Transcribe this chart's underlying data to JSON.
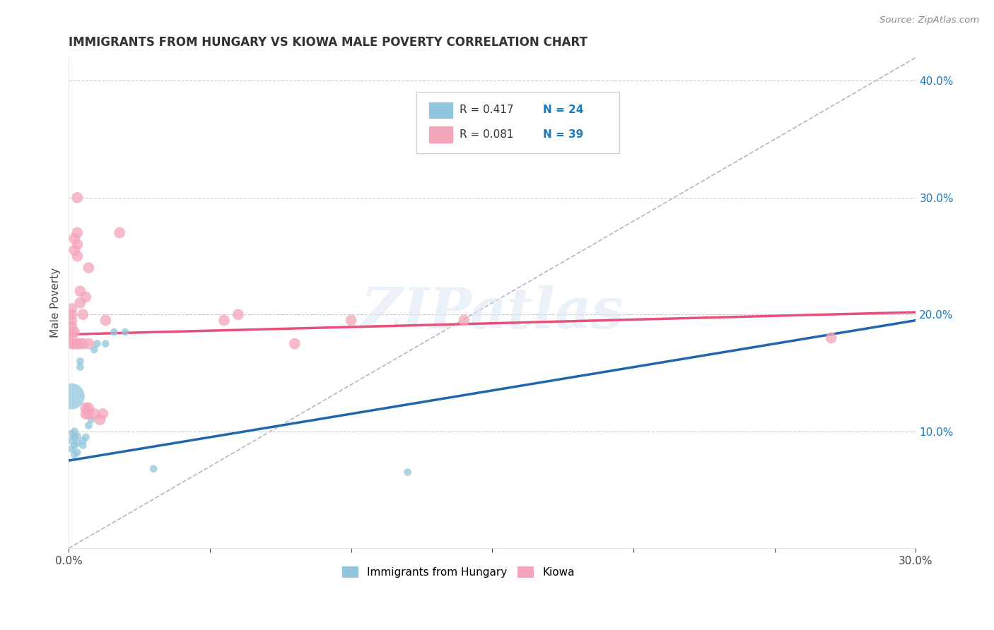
{
  "title": "IMMIGRANTS FROM HUNGARY VS KIOWA MALE POVERTY CORRELATION CHART",
  "source": "Source: ZipAtlas.com",
  "ylabel": "Male Poverty",
  "xlim": [
    0.0,
    0.3
  ],
  "ylim": [
    0.0,
    0.42
  ],
  "x_tick_positions": [
    0.0,
    0.05,
    0.1,
    0.15,
    0.2,
    0.25,
    0.3
  ],
  "x_tick_labels": [
    "0.0%",
    "",
    "",
    "",
    "",
    "",
    "30.0%"
  ],
  "y_ticks_right": [
    0.1,
    0.2,
    0.3,
    0.4
  ],
  "y_tick_labels_right": [
    "10.0%",
    "20.0%",
    "30.0%",
    "40.0%"
  ],
  "grid_color": "#cccccc",
  "background_color": "#ffffff",
  "watermark": "ZIPatlas",
  "legend_r1": "R = 0.417",
  "legend_n1": "N = 24",
  "legend_r2": "R = 0.081",
  "legend_n2": "N = 39",
  "blue_color": "#92c5de",
  "pink_color": "#f4a5b8",
  "blue_line_color": "#2166ac",
  "pink_line_color": "#e8507a",
  "dashed_line_color": "#b0b8c8",
  "blue_dots": [
    [
      0.001,
      0.085
    ],
    [
      0.001,
      0.092
    ],
    [
      0.001,
      0.098
    ],
    [
      0.002,
      0.08
    ],
    [
      0.002,
      0.088
    ],
    [
      0.002,
      0.095
    ],
    [
      0.002,
      0.1
    ],
    [
      0.003,
      0.082
    ],
    [
      0.003,
      0.09
    ],
    [
      0.003,
      0.096
    ],
    [
      0.004,
      0.155
    ],
    [
      0.004,
      0.16
    ],
    [
      0.005,
      0.088
    ],
    [
      0.005,
      0.092
    ],
    [
      0.006,
      0.095
    ],
    [
      0.007,
      0.105
    ],
    [
      0.008,
      0.11
    ],
    [
      0.009,
      0.17
    ],
    [
      0.01,
      0.175
    ],
    [
      0.013,
      0.175
    ],
    [
      0.016,
      0.185
    ],
    [
      0.02,
      0.185
    ],
    [
      0.03,
      0.068
    ],
    [
      0.12,
      0.065
    ]
  ],
  "blue_dot_sizes": [
    60,
    60,
    60,
    60,
    60,
    60,
    60,
    60,
    60,
    60,
    60,
    60,
    60,
    60,
    60,
    60,
    60,
    60,
    60,
    60,
    60,
    60,
    60,
    60
  ],
  "blue_large_dot": [
    0.001,
    0.13
  ],
  "blue_large_dot_size": 700,
  "pink_dots": [
    [
      0.001,
      0.175
    ],
    [
      0.001,
      0.18
    ],
    [
      0.001,
      0.185
    ],
    [
      0.001,
      0.19
    ],
    [
      0.001,
      0.195
    ],
    [
      0.001,
      0.2
    ],
    [
      0.001,
      0.205
    ],
    [
      0.002,
      0.175
    ],
    [
      0.002,
      0.185
    ],
    [
      0.002,
      0.255
    ],
    [
      0.002,
      0.265
    ],
    [
      0.003,
      0.175
    ],
    [
      0.003,
      0.25
    ],
    [
      0.003,
      0.26
    ],
    [
      0.003,
      0.27
    ],
    [
      0.003,
      0.3
    ],
    [
      0.004,
      0.175
    ],
    [
      0.004,
      0.21
    ],
    [
      0.004,
      0.22
    ],
    [
      0.005,
      0.175
    ],
    [
      0.005,
      0.2
    ],
    [
      0.006,
      0.115
    ],
    [
      0.006,
      0.12
    ],
    [
      0.006,
      0.215
    ],
    [
      0.007,
      0.115
    ],
    [
      0.007,
      0.12
    ],
    [
      0.007,
      0.24
    ],
    [
      0.007,
      0.175
    ],
    [
      0.009,
      0.115
    ],
    [
      0.011,
      0.11
    ],
    [
      0.012,
      0.115
    ],
    [
      0.013,
      0.195
    ],
    [
      0.018,
      0.27
    ],
    [
      0.055,
      0.195
    ],
    [
      0.06,
      0.2
    ],
    [
      0.08,
      0.175
    ],
    [
      0.1,
      0.195
    ],
    [
      0.14,
      0.195
    ],
    [
      0.27,
      0.18
    ]
  ],
  "blue_line_x": [
    0.0,
    0.3
  ],
  "blue_line_y": [
    0.075,
    0.195
  ],
  "pink_line_x": [
    0.0,
    0.3
  ],
  "pink_line_y": [
    0.183,
    0.202
  ],
  "dashed_line_x": [
    0.0,
    0.3
  ],
  "dashed_line_y": [
    0.0,
    0.42
  ]
}
